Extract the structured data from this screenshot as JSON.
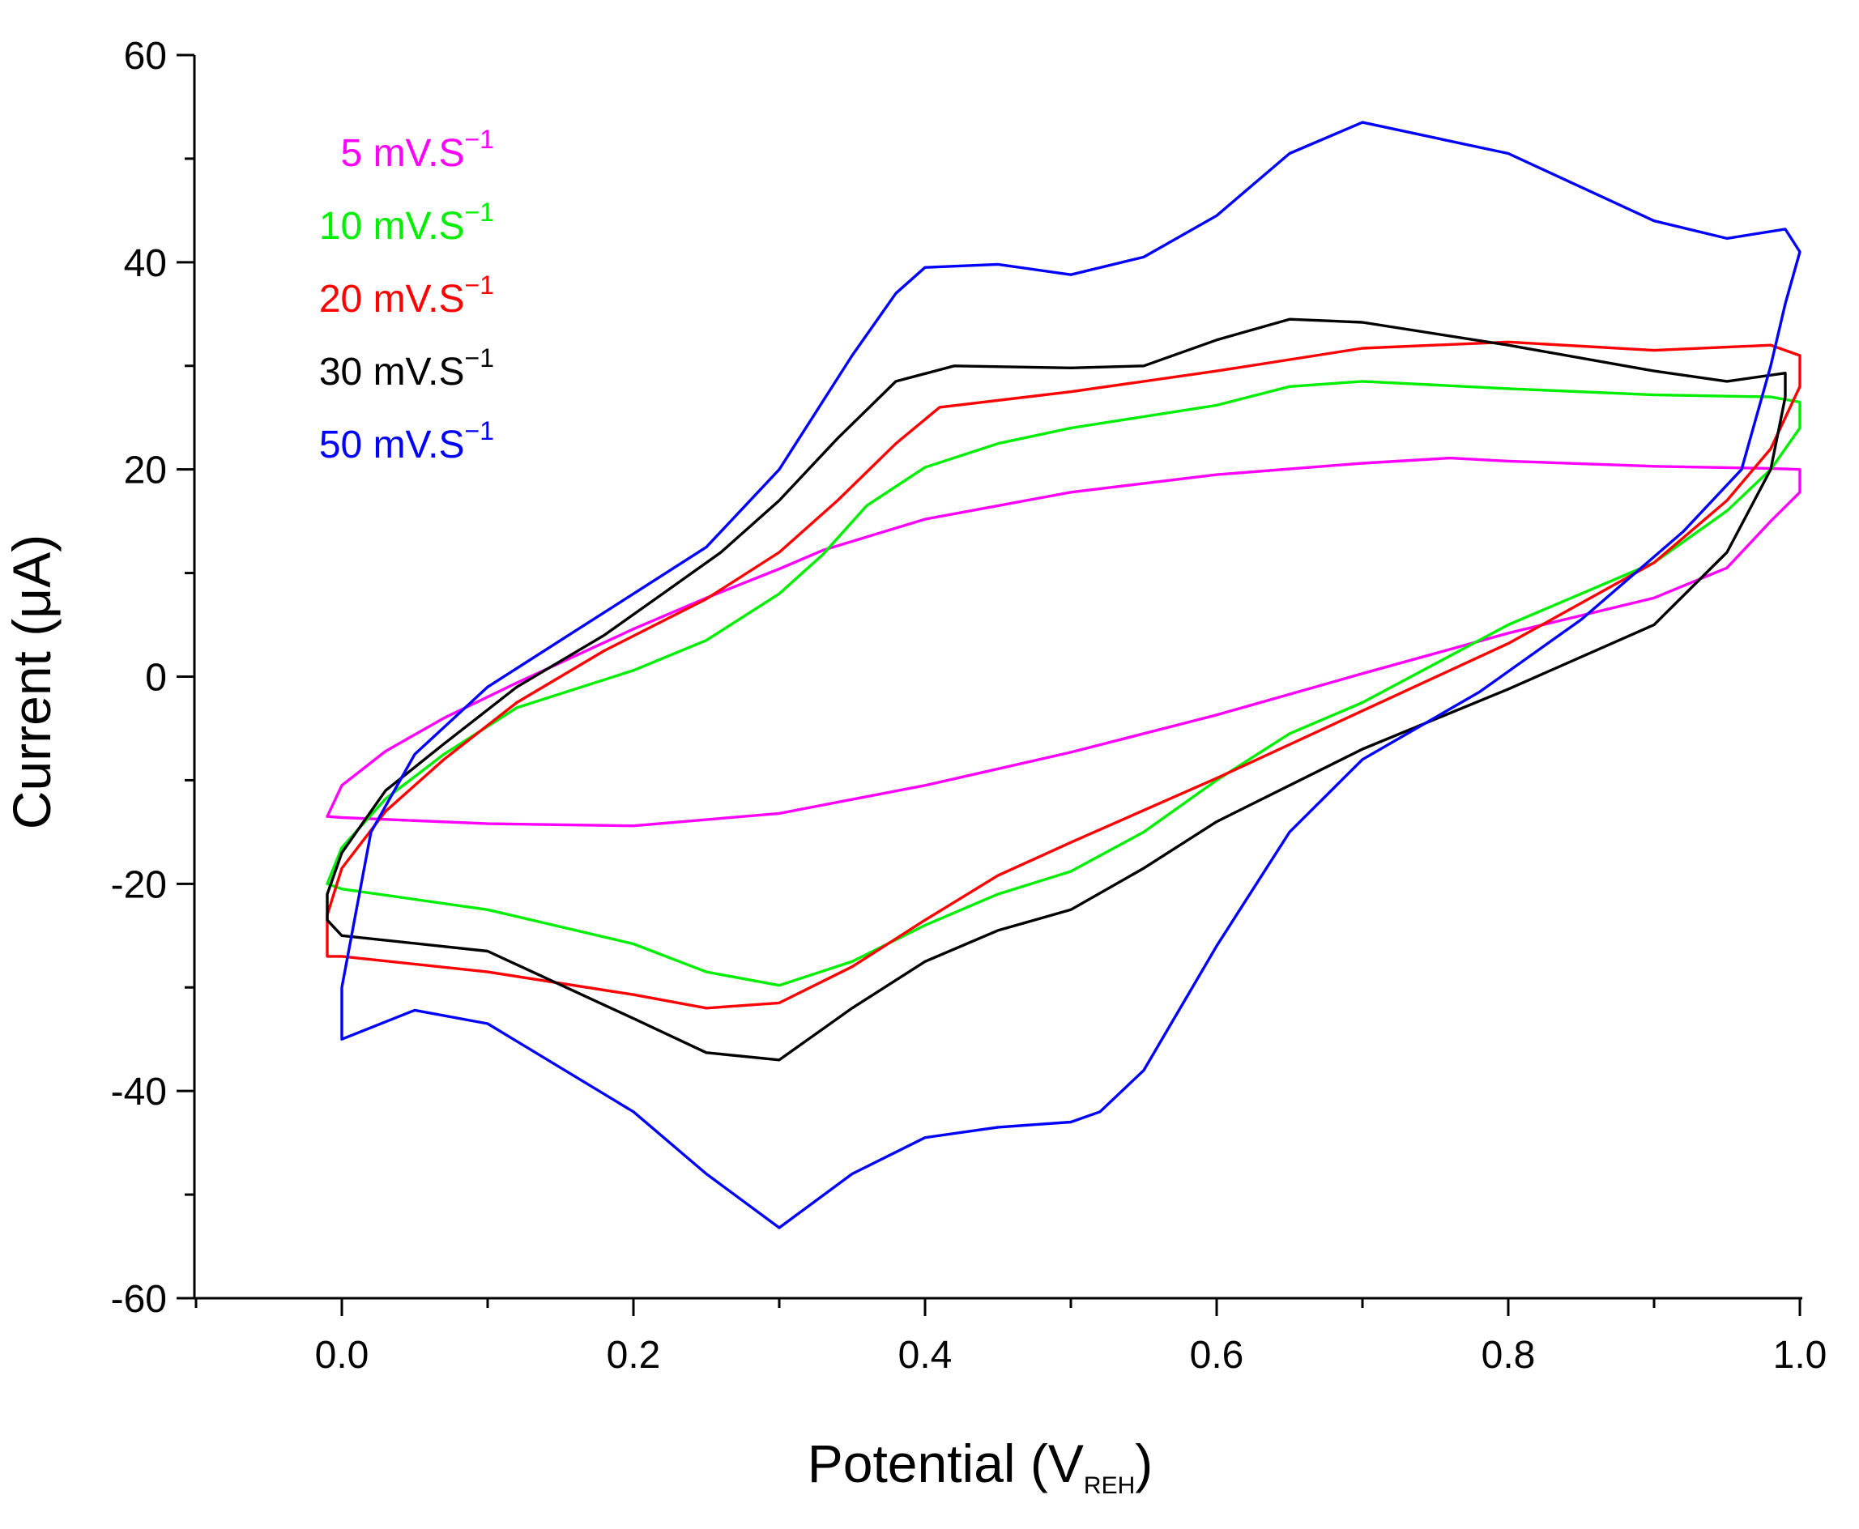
{
  "chart_data": {
    "type": "line",
    "title": "",
    "xlabel": "Potential (V",
    "xlabel_sub": "REH",
    "xlabel_close": ")",
    "ylabel": "Current (μA)",
    "xlim": [
      -0.1,
      1.02
    ],
    "ylim": [
      -60,
      60
    ],
    "grid": false,
    "legend_position": "top-left",
    "x_ticks": [
      {
        "value": 0.0,
        "label": "0.0"
      },
      {
        "value": 0.2,
        "label": "0.2"
      },
      {
        "value": 0.4,
        "label": "0.4"
      },
      {
        "value": 0.6,
        "label": "0.6"
      },
      {
        "value": 0.8,
        "label": "0.8"
      },
      {
        "value": 1.0,
        "label": "1.0"
      }
    ],
    "x_minor_ticks": [
      -0.1,
      0.1,
      0.3,
      0.5,
      0.7,
      0.9
    ],
    "y_ticks": [
      {
        "value": 60,
        "label": "60"
      },
      {
        "value": 40,
        "label": "40"
      },
      {
        "value": 20,
        "label": "20"
      },
      {
        "value": 0,
        "label": "0"
      },
      {
        "value": -20,
        "label": "-20"
      },
      {
        "value": -40,
        "label": "-40"
      },
      {
        "value": -60,
        "label": "-60"
      }
    ],
    "y_minor_ticks": [
      50,
      30,
      10,
      -10,
      -30,
      -50
    ],
    "series": [
      {
        "name": "5 mV.S",
        "superscript": "−1",
        "color": "#ff00ff",
        "points": [
          [
            -0.01,
            -13.5
          ],
          [
            0.0,
            -10.5
          ],
          [
            0.03,
            -7.2
          ],
          [
            0.07,
            -4.0
          ],
          [
            0.12,
            -0.6
          ],
          [
            0.2,
            4.6
          ],
          [
            0.25,
            7.6
          ],
          [
            0.3,
            10.4
          ],
          [
            0.33,
            12.2
          ],
          [
            0.4,
            15.2
          ],
          [
            0.5,
            17.8
          ],
          [
            0.6,
            19.5
          ],
          [
            0.7,
            20.6
          ],
          [
            0.76,
            21.1
          ],
          [
            0.8,
            20.8
          ],
          [
            0.9,
            20.3
          ],
          [
            0.98,
            20.1
          ],
          [
            1.0,
            20.0
          ],
          [
            1.0,
            17.8
          ],
          [
            0.98,
            15.0
          ],
          [
            0.95,
            10.5
          ],
          [
            0.9,
            7.6
          ],
          [
            0.8,
            4.2
          ],
          [
            0.7,
            0.3
          ],
          [
            0.6,
            -3.7
          ],
          [
            0.5,
            -7.3
          ],
          [
            0.4,
            -10.5
          ],
          [
            0.3,
            -13.2
          ],
          [
            0.2,
            -14.4
          ],
          [
            0.1,
            -14.2
          ],
          [
            0.0,
            -13.6
          ]
        ]
      },
      {
        "name": "10 mV.S",
        "superscript": "−1",
        "color": "#00ee00",
        "points": [
          [
            -0.01,
            -20.0
          ],
          [
            0.0,
            -16.5
          ],
          [
            0.03,
            -11.8
          ],
          [
            0.07,
            -7.5
          ],
          [
            0.12,
            -3.0
          ],
          [
            0.2,
            0.6
          ],
          [
            0.25,
            3.5
          ],
          [
            0.3,
            8.0
          ],
          [
            0.33,
            11.8
          ],
          [
            0.36,
            16.5
          ],
          [
            0.4,
            20.2
          ],
          [
            0.45,
            22.5
          ],
          [
            0.5,
            24.0
          ],
          [
            0.6,
            26.2
          ],
          [
            0.65,
            28.0
          ],
          [
            0.7,
            28.5
          ],
          [
            0.8,
            27.8
          ],
          [
            0.9,
            27.2
          ],
          [
            0.98,
            27.0
          ],
          [
            1.0,
            26.5
          ],
          [
            1.0,
            24.0
          ],
          [
            0.98,
            20.0
          ],
          [
            0.95,
            16.0
          ],
          [
            0.9,
            11.0
          ],
          [
            0.8,
            5.0
          ],
          [
            0.7,
            -2.5
          ],
          [
            0.65,
            -5.5
          ],
          [
            0.6,
            -10.0
          ],
          [
            0.55,
            -15.0
          ],
          [
            0.5,
            -18.8
          ],
          [
            0.45,
            -21.0
          ],
          [
            0.4,
            -24.0
          ],
          [
            0.35,
            -27.5
          ],
          [
            0.3,
            -29.8
          ],
          [
            0.25,
            -28.5
          ],
          [
            0.2,
            -25.8
          ],
          [
            0.1,
            -22.5
          ],
          [
            0.0,
            -20.5
          ]
        ]
      },
      {
        "name": "20 mV.S",
        "superscript": "−1",
        "color": "#ff0000",
        "points": [
          [
            -0.01,
            -27.0
          ],
          [
            -0.01,
            -23.0
          ],
          [
            0.0,
            -18.5
          ],
          [
            0.03,
            -13.0
          ],
          [
            0.07,
            -8.0
          ],
          [
            0.12,
            -2.5
          ],
          [
            0.18,
            2.5
          ],
          [
            0.25,
            7.5
          ],
          [
            0.3,
            12.0
          ],
          [
            0.34,
            17.0
          ],
          [
            0.38,
            22.5
          ],
          [
            0.41,
            26.0
          ],
          [
            0.5,
            27.5
          ],
          [
            0.6,
            29.5
          ],
          [
            0.7,
            31.7
          ],
          [
            0.8,
            32.3
          ],
          [
            0.9,
            31.5
          ],
          [
            0.98,
            32.0
          ],
          [
            1.0,
            31.0
          ],
          [
            1.0,
            28.0
          ],
          [
            0.98,
            22.0
          ],
          [
            0.95,
            17.0
          ],
          [
            0.9,
            11.0
          ],
          [
            0.8,
            3.2
          ],
          [
            0.7,
            -3.3
          ],
          [
            0.6,
            -9.8
          ],
          [
            0.5,
            -16.0
          ],
          [
            0.45,
            -19.2
          ],
          [
            0.4,
            -23.5
          ],
          [
            0.35,
            -28.0
          ],
          [
            0.3,
            -31.5
          ],
          [
            0.25,
            -32.0
          ],
          [
            0.2,
            -30.7
          ],
          [
            0.1,
            -28.5
          ],
          [
            0.0,
            -27.0
          ]
        ]
      },
      {
        "name": "30 mV.S",
        "superscript": "−1",
        "color": "#000000",
        "points": [
          [
            -0.01,
            -23.5
          ],
          [
            -0.01,
            -21.0
          ],
          [
            0.0,
            -17.0
          ],
          [
            0.03,
            -11.0
          ],
          [
            0.07,
            -6.5
          ],
          [
            0.12,
            -1.0
          ],
          [
            0.18,
            4.0
          ],
          [
            0.22,
            8.0
          ],
          [
            0.26,
            12.0
          ],
          [
            0.3,
            17.0
          ],
          [
            0.34,
            23.0
          ],
          [
            0.38,
            28.5
          ],
          [
            0.42,
            30.0
          ],
          [
            0.5,
            29.8
          ],
          [
            0.55,
            30.0
          ],
          [
            0.6,
            32.5
          ],
          [
            0.65,
            34.5
          ],
          [
            0.7,
            34.2
          ],
          [
            0.8,
            32.0
          ],
          [
            0.9,
            29.5
          ],
          [
            0.95,
            28.5
          ],
          [
            0.99,
            29.3
          ],
          [
            0.99,
            27.0
          ],
          [
            0.98,
            20.0
          ],
          [
            0.95,
            12.0
          ],
          [
            0.9,
            5.0
          ],
          [
            0.8,
            -1.2
          ],
          [
            0.7,
            -7.0
          ],
          [
            0.6,
            -14.0
          ],
          [
            0.55,
            -18.5
          ],
          [
            0.5,
            -22.5
          ],
          [
            0.45,
            -24.5
          ],
          [
            0.4,
            -27.5
          ],
          [
            0.35,
            -32.0
          ],
          [
            0.3,
            -37.0
          ],
          [
            0.25,
            -36.3
          ],
          [
            0.2,
            -33.0
          ],
          [
            0.1,
            -26.5
          ],
          [
            0.0,
            -25.0
          ]
        ]
      },
      {
        "name": "50 mV.S",
        "superscript": "−1",
        "color": "#0000ff",
        "points": [
          [
            0.0,
            -35.0
          ],
          [
            0.0,
            -30.0
          ],
          [
            0.02,
            -15.0
          ],
          [
            0.05,
            -7.5
          ],
          [
            0.1,
            -1.0
          ],
          [
            0.15,
            3.5
          ],
          [
            0.2,
            8.0
          ],
          [
            0.25,
            12.5
          ],
          [
            0.3,
            20.0
          ],
          [
            0.35,
            31.0
          ],
          [
            0.38,
            37.0
          ],
          [
            0.4,
            39.5
          ],
          [
            0.45,
            39.8
          ],
          [
            0.5,
            38.8
          ],
          [
            0.55,
            40.5
          ],
          [
            0.6,
            44.5
          ],
          [
            0.65,
            50.5
          ],
          [
            0.7,
            53.5
          ],
          [
            0.8,
            50.5
          ],
          [
            0.9,
            44.0
          ],
          [
            0.95,
            42.3
          ],
          [
            0.99,
            43.2
          ],
          [
            1.0,
            41.0
          ],
          [
            0.99,
            36.0
          ],
          [
            0.98,
            30.0
          ],
          [
            0.96,
            20.0
          ],
          [
            0.92,
            14.0
          ],
          [
            0.85,
            5.5
          ],
          [
            0.78,
            -1.5
          ],
          [
            0.7,
            -8.0
          ],
          [
            0.65,
            -15.0
          ],
          [
            0.6,
            -26.0
          ],
          [
            0.55,
            -38.0
          ],
          [
            0.52,
            -42.0
          ],
          [
            0.5,
            -43.0
          ],
          [
            0.45,
            -43.5
          ],
          [
            0.4,
            -44.5
          ],
          [
            0.35,
            -48.0
          ],
          [
            0.3,
            -53.2
          ],
          [
            0.25,
            -48.0
          ],
          [
            0.2,
            -42.0
          ],
          [
            0.1,
            -33.5
          ],
          [
            0.05,
            -32.2
          ],
          [
            0.0,
            -35.0
          ]
        ]
      }
    ]
  }
}
